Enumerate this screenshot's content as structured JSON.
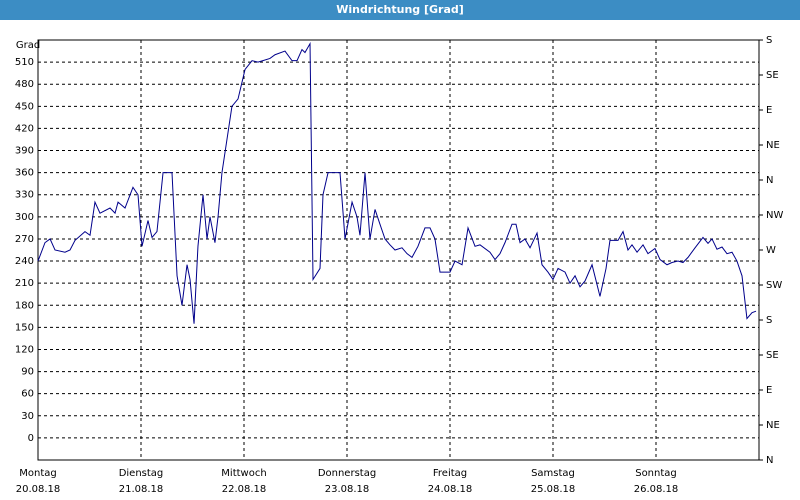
{
  "chart_data": {
    "type": "line",
    "title": "Windrichtung [Grad]",
    "y_label": "Grad",
    "xlim": [
      0,
      7
    ],
    "xticks": [
      {
        "value": 0,
        "label": "Montag",
        "sublabel": "20.08.18"
      },
      {
        "value": 1,
        "label": "Dienstag",
        "sublabel": "21.08.18"
      },
      {
        "value": 2,
        "label": "Mittwoch",
        "sublabel": "22.08.18"
      },
      {
        "value": 3,
        "label": "Donnerstag",
        "sublabel": "23.08.18"
      },
      {
        "value": 4,
        "label": "Freitag",
        "sublabel": "24.08.18"
      },
      {
        "value": 5,
        "label": "Samstag",
        "sublabel": "25.08.18"
      },
      {
        "value": 6,
        "label": "Sonntag",
        "sublabel": "26.08.18"
      }
    ],
    "ylim": [
      -30,
      540
    ],
    "yticks": [
      0,
      30,
      60,
      90,
      120,
      150,
      180,
      210,
      240,
      270,
      300,
      330,
      360,
      390,
      420,
      450,
      480,
      510
    ],
    "y2lim": [
      0,
      12
    ],
    "y2ticks": [
      {
        "value": 0,
        "label": "N"
      },
      {
        "value": 1,
        "label": "NE"
      },
      {
        "value": 2,
        "label": "E"
      },
      {
        "value": 3,
        "label": "SE"
      },
      {
        "value": 4,
        "label": "S"
      },
      {
        "value": 5,
        "label": "SW"
      },
      {
        "value": 6,
        "label": "W"
      },
      {
        "value": 7,
        "label": "NW"
      },
      {
        "value": 8,
        "label": "N"
      },
      {
        "value": 9,
        "label": "NE"
      },
      {
        "value": 10,
        "label": "E"
      },
      {
        "value": 11,
        "label": "SE"
      },
      {
        "value": 12,
        "label": "S"
      }
    ],
    "grid": true,
    "color": "#00008b",
    "x": [
      0,
      0.068,
      0.117,
      0.165,
      0.262,
      0.311,
      0.359,
      0.456,
      0.505,
      0.553,
      0.602,
      0.699,
      0.748,
      0.777,
      0.845,
      0.922,
      0.971,
      1.01,
      1.068,
      1.107,
      1.155,
      1.214,
      1.301,
      1.35,
      1.398,
      1.447,
      1.476,
      1.515,
      1.553,
      1.602,
      1.641,
      1.67,
      1.718,
      1.748,
      1.786,
      1.883,
      1.942,
      2.01,
      2.078,
      2.136,
      2.184,
      2.252,
      2.301,
      2.398,
      2.466,
      2.515,
      2.563,
      2.592,
      2.641,
      2.67,
      2.738,
      2.767,
      2.816,
      2.932,
      2.981,
      3.049,
      3.097,
      3.126,
      3.175,
      3.223,
      3.272,
      3.32,
      3.369,
      3.417,
      3.466,
      3.534,
      3.583,
      3.631,
      3.689,
      3.757,
      3.806,
      3.854,
      3.903,
      4.0,
      4.049,
      4.117,
      4.175,
      4.243,
      4.291,
      4.388,
      4.437,
      4.485,
      4.534,
      4.602,
      4.641,
      4.68,
      4.728,
      4.777,
      4.845,
      4.893,
      4.951,
      5.0,
      5.049,
      5.117,
      5.165,
      5.214,
      5.262,
      5.311,
      5.379,
      5.456,
      5.515,
      5.553,
      5.631,
      5.68,
      5.728,
      5.767,
      5.816,
      5.874,
      5.922,
      5.99,
      6.039,
      6.107,
      6.155,
      6.214,
      6.262,
      6.311,
      6.379,
      6.456,
      6.505,
      6.544,
      6.592,
      6.641,
      6.689,
      6.738,
      6.786,
      6.835,
      6.883,
      6.932,
      6.971
    ],
    "values": [
      240,
      265,
      270,
      255,
      252,
      255,
      268,
      280,
      275,
      320,
      305,
      312,
      305,
      320,
      312,
      340,
      330,
      260,
      295,
      272,
      280,
      360,
      360,
      220,
      180,
      235,
      215,
      155,
      260,
      330,
      270,
      300,
      265,
      300,
      360,
      450,
      460,
      500,
      512,
      510,
      512,
      515,
      520,
      525,
      512,
      512,
      527,
      523,
      535,
      215,
      230,
      330,
      360,
      360,
      270,
      320,
      300,
      275,
      360,
      270,
      310,
      290,
      270,
      262,
      255,
      258,
      250,
      245,
      260,
      285,
      285,
      270,
      225,
      225,
      240,
      235,
      285,
      260,
      262,
      252,
      242,
      250,
      265,
      290,
      290,
      265,
      270,
      258,
      278,
      235,
      225,
      215,
      230,
      225,
      210,
      220,
      205,
      213,
      235,
      192,
      230,
      268,
      268,
      280,
      255,
      262,
      252,
      262,
      250,
      257,
      242,
      235,
      238,
      240,
      238,
      245,
      258,
      272,
      264,
      270,
      256,
      259,
      250,
      252,
      240,
      220,
      162,
      170,
      172
    ]
  }
}
